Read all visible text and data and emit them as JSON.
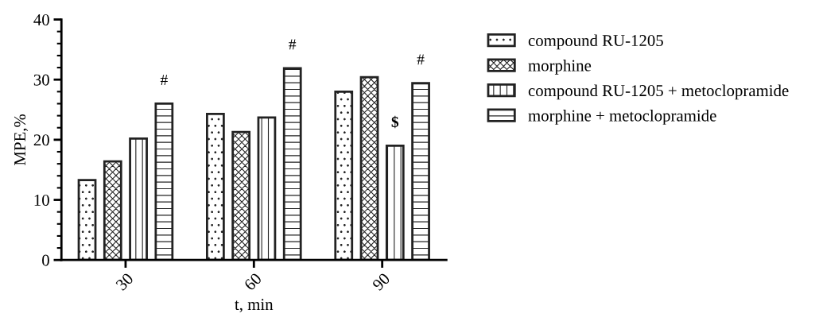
{
  "chart_data": {
    "type": "bar",
    "xlabel": "t, min",
    "ylabel": "MPE,%",
    "categories": [
      "30",
      "60",
      "90"
    ],
    "series": [
      {
        "name": "compound RU-1205",
        "color": "#222222",
        "values": [
          13.3,
          24.3,
          28.0
        ]
      },
      {
        "name": "morphine",
        "color": "#222222",
        "values": [
          16.4,
          21.3,
          30.4
        ]
      },
      {
        "name": "compound RU-1205 + metoclopramide",
        "color": "#222222",
        "values": [
          20.2,
          23.7,
          19.0
        ]
      },
      {
        "name": "morphine + metoclopramide",
        "color": "#222222",
        "values": [
          26.0,
          31.9,
          29.4
        ]
      }
    ],
    "ylim": [
      0,
      40
    ],
    "yticks": [
      0,
      10,
      20,
      30,
      40
    ],
    "grid": false,
    "legend": "top right",
    "annotations": [
      "#",
      "#",
      "$",
      "#"
    ]
  }
}
